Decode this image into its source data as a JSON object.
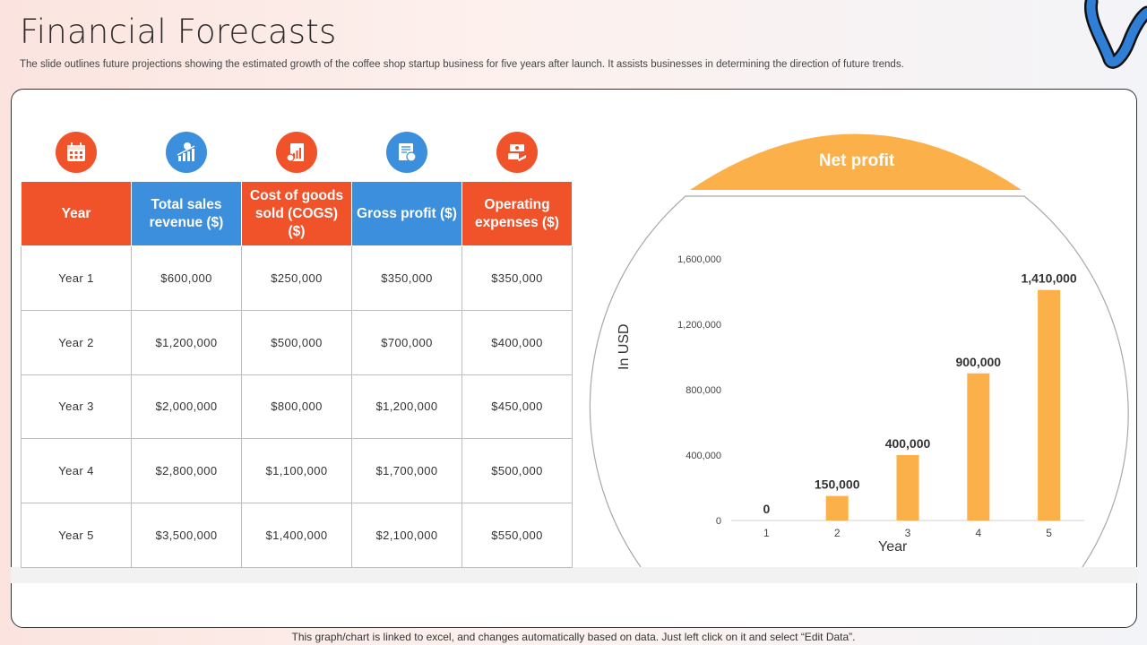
{
  "header": {
    "title": "Financial Forecasts",
    "subtitle": "The slide outlines future projections showing the estimated growth of the coffee shop startup business for five years after launch. It assists businesses in determining the direction of future trends."
  },
  "table": {
    "columns": [
      "Year",
      "Total sales revenue ($)",
      "Cost of goods sold (COGS) ($)",
      "Gross profit ($)",
      "Operating expenses ($)"
    ],
    "column_icons": [
      "calendar-icon",
      "growth-chart-icon",
      "cost-report-icon",
      "profit-document-icon",
      "expense-cash-icon"
    ],
    "rows": [
      [
        "Year 1",
        "$600,000",
        "$250,000",
        "$350,000",
        "$350,000"
      ],
      [
        "Year 2",
        "$1,200,000",
        "$500,000",
        "$700,000",
        "$400,000"
      ],
      [
        "Year 3",
        "$2,000,000",
        "$800,000",
        "$1,200,000",
        "$450,000"
      ],
      [
        "Year 4",
        "$2,800,000",
        "$1,100,000",
        "$1,700,000",
        "$500,000"
      ],
      [
        "Year 5",
        "$3,500,000",
        "$1,400,000",
        "$2,100,000",
        "$550,000"
      ]
    ]
  },
  "colors": {
    "orange": "#f0522a",
    "blue": "#3b8fdc",
    "bar": "#fbb04a",
    "accent_dark_blue": "#1f5fa8"
  },
  "chart_data": {
    "type": "bar",
    "title": "Net profit",
    "xlabel": "Year",
    "ylabel": "In USD",
    "categories": [
      "1",
      "2",
      "3",
      "4",
      "5"
    ],
    "values": [
      0,
      150000,
      400000,
      900000,
      1410000
    ],
    "data_labels": [
      "0",
      "150,000",
      "400,000",
      "900,000",
      "1,410,000"
    ],
    "ylim": [
      0,
      1600000
    ],
    "yticks": [
      0,
      400000,
      800000,
      1200000,
      1600000
    ],
    "ytick_labels": [
      "0",
      "400,000",
      "800,000",
      "1,200,000",
      "1,600,000"
    ],
    "grid": false,
    "legend": "none"
  },
  "footer": {
    "note": "This graph/chart is linked to excel, and changes automatically based on data. Just left click on it and select “Edit Data”."
  }
}
